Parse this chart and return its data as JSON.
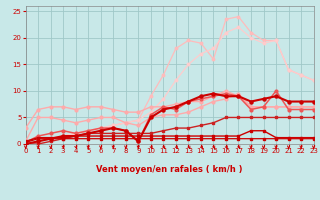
{
  "bg_color": "#c8e8e8",
  "grid_color": "#a0c8c8",
  "red_dark": "#cc0000",
  "red_mid": "#ee5555",
  "red_light": "#ffaaaa",
  "red_vlight": "#ffcccc",
  "xlabel": "Vent moyen/en rafales ( km/h )",
  "xlim": [
    0,
    23
  ],
  "ylim": [
    0,
    26
  ],
  "yticks": [
    0,
    5,
    10,
    15,
    20,
    25
  ],
  "xticks": [
    0,
    1,
    2,
    3,
    4,
    5,
    6,
    7,
    8,
    9,
    10,
    11,
    12,
    13,
    14,
    15,
    16,
    17,
    18,
    19,
    20,
    21,
    22,
    23
  ],
  "series": [
    {
      "x": [
        0,
        1,
        2,
        3,
        4,
        5,
        6,
        7,
        8,
        9,
        10,
        11,
        12,
        13,
        14,
        15,
        16,
        17,
        18,
        19,
        20,
        21,
        22,
        23
      ],
      "y": [
        0.3,
        1,
        1,
        1,
        1,
        1,
        1,
        1,
        1,
        1,
        1,
        1,
        1,
        1,
        1,
        1,
        1,
        1,
        1,
        1,
        1,
        1,
        1,
        1
      ],
      "color": "#cc0000",
      "lw": 0.9,
      "marker": "s",
      "ms": 2.0,
      "zorder": 5
    },
    {
      "x": [
        0,
        1,
        2,
        3,
        4,
        5,
        6,
        7,
        8,
        9,
        10,
        11,
        12,
        13,
        14,
        15,
        16,
        17,
        18,
        19,
        20,
        21,
        22,
        23
      ],
      "y": [
        0.5,
        1.2,
        1.2,
        1.2,
        1.5,
        1.5,
        1.5,
        1.5,
        1.5,
        1.5,
        1.5,
        1.5,
        1.5,
        1.5,
        1.5,
        1.5,
        1.5,
        1.5,
        2.5,
        2.5,
        1.2,
        1.2,
        1.2,
        1.2
      ],
      "color": "#cc0000",
      "lw": 1.0,
      "marker": "s",
      "ms": 2.0,
      "zorder": 5
    },
    {
      "x": [
        0,
        1,
        2,
        3,
        4,
        5,
        6,
        7,
        8,
        9,
        10,
        11,
        12,
        13,
        14,
        15,
        16,
        17,
        18,
        19,
        20,
        21,
        22,
        23
      ],
      "y": [
        0,
        0,
        0.5,
        1,
        1.5,
        2,
        2,
        2,
        2,
        2,
        2,
        2.5,
        3,
        3,
        3.5,
        4,
        5,
        5,
        5,
        5,
        5,
        5,
        5,
        5
      ],
      "color": "#cc2222",
      "lw": 1.0,
      "marker": "s",
      "ms": 2.0,
      "zorder": 4
    },
    {
      "x": [
        0,
        1,
        2,
        3,
        4,
        5,
        6,
        7,
        8,
        9,
        10,
        11,
        12,
        13,
        14,
        15,
        16,
        17,
        18,
        19,
        20,
        21,
        22,
        23
      ],
      "y": [
        3,
        6.5,
        7,
        7,
        6.5,
        7,
        7,
        6.5,
        6,
        6,
        7,
        7,
        7.5,
        8,
        8,
        9,
        10,
        9,
        7,
        7,
        7,
        7,
        7,
        7
      ],
      "color": "#ffaaaa",
      "lw": 1.0,
      "marker": "o",
      "ms": 2.0,
      "zorder": 3
    },
    {
      "x": [
        0,
        1,
        2,
        3,
        4,
        5,
        6,
        7,
        8,
        9,
        10,
        11,
        12,
        13,
        14,
        15,
        16,
        17,
        18,
        19,
        20,
        21,
        22,
        23
      ],
      "y": [
        0.5,
        5,
        5,
        4.5,
        4,
        4.5,
        5,
        5,
        4,
        3.5,
        5,
        5.5,
        5.5,
        6,
        7,
        8,
        8.5,
        9.5,
        7,
        7,
        7,
        7,
        7,
        7
      ],
      "color": "#ffaaaa",
      "lw": 1.0,
      "marker": "o",
      "ms": 2.0,
      "zorder": 3
    },
    {
      "x": [
        0,
        1,
        2,
        3,
        4,
        5,
        6,
        7,
        8,
        9,
        10,
        11,
        12,
        13,
        14,
        15,
        16,
        17,
        18,
        19,
        20,
        21,
        22,
        23
      ],
      "y": [
        0.3,
        1.5,
        2,
        2.5,
        2,
        2.5,
        3,
        3,
        2.5,
        0.5,
        5.5,
        7,
        6.5,
        8,
        8.5,
        9,
        9.5,
        9,
        6.5,
        7,
        10,
        6.5,
        6.5,
        6.5
      ],
      "color": "#ee5555",
      "lw": 1.1,
      "marker": "o",
      "ms": 2.0,
      "zorder": 4
    },
    {
      "x": [
        0,
        1,
        2,
        3,
        4,
        5,
        6,
        7,
        8,
        9,
        10,
        11,
        12,
        13,
        14,
        15,
        16,
        17,
        18,
        19,
        20,
        21,
        22,
        23
      ],
      "y": [
        0,
        0.5,
        1,
        1.5,
        1.5,
        2,
        2.5,
        3,
        2.5,
        0.5,
        5,
        6.5,
        7,
        8,
        9,
        9.5,
        9,
        9,
        8,
        8.5,
        9,
        8,
        8,
        8
      ],
      "color": "#cc0000",
      "lw": 1.5,
      "marker": "o",
      "ms": 2.2,
      "zorder": 5
    },
    {
      "x": [
        0,
        1,
        2,
        3,
        4,
        5,
        6,
        7,
        8,
        9,
        10,
        11,
        12,
        13,
        14,
        15,
        16,
        17,
        18,
        19,
        20,
        21,
        22,
        23
      ],
      "y": [
        0,
        0.5,
        1,
        1.5,
        2,
        2.5,
        3,
        3.5,
        4,
        4.5,
        9,
        13,
        18,
        19.5,
        19,
        16,
        23.5,
        24,
        21,
        19.5,
        19.5,
        14,
        13,
        12
      ],
      "color": "#ffbbbb",
      "lw": 0.9,
      "marker": "o",
      "ms": 1.8,
      "zorder": 2
    },
    {
      "x": [
        0,
        1,
        2,
        3,
        4,
        5,
        6,
        7,
        8,
        9,
        10,
        11,
        12,
        13,
        14,
        15,
        16,
        17,
        18,
        19,
        20,
        21,
        22,
        23
      ],
      "y": [
        0,
        0.5,
        1,
        1.5,
        2,
        2.5,
        3,
        3.5,
        4,
        4.5,
        6,
        8.5,
        12,
        15,
        17,
        18,
        21,
        22,
        20,
        19,
        19.5,
        14,
        13,
        12
      ],
      "color": "#ffcccc",
      "lw": 0.9,
      "marker": "o",
      "ms": 1.8,
      "zorder": 2
    }
  ],
  "arrow_angles": [
    90,
    90,
    75,
    75,
    60,
    90,
    90,
    90,
    90,
    90,
    45,
    40,
    35,
    30,
    30,
    45,
    45,
    45,
    90,
    90,
    90,
    90,
    90,
    90
  ]
}
